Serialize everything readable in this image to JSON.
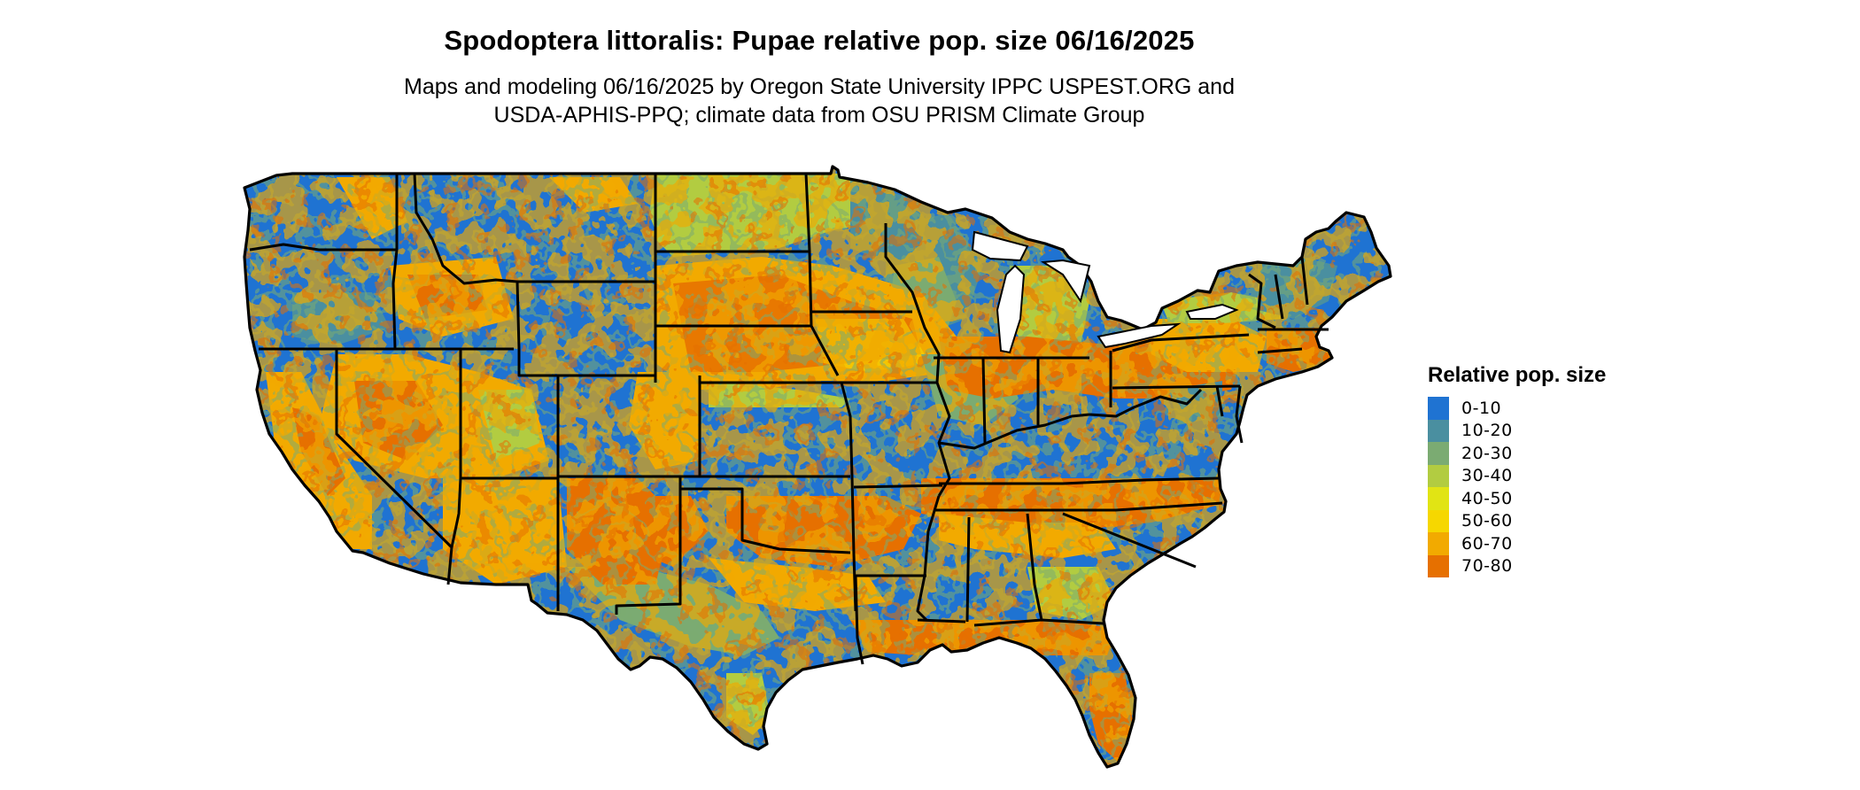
{
  "title": "Spodoptera littoralis: Pupae relative pop. size 06/16/2025",
  "subtitle_line1": "Maps and modeling 06/16/2025 by Oregon State University IPPC USPEST.ORG and",
  "subtitle_line2": "USDA-APHIS-PPQ; climate data from OSU PRISM Climate Group",
  "legend": {
    "title": "Relative pop. size",
    "items": [
      {
        "label": "0-10",
        "color": "#1f73d2"
      },
      {
        "label": "10-20",
        "color": "#4a8fa0"
      },
      {
        "label": "20-30",
        "color": "#7bab72"
      },
      {
        "label": "30-40",
        "color": "#b2cc41"
      },
      {
        "label": "40-50",
        "color": "#e1e414"
      },
      {
        "label": "50-60",
        "color": "#f6d700"
      },
      {
        "label": "60-70",
        "color": "#f2aa00"
      },
      {
        "label": "70-80",
        "color": "#e67000"
      }
    ]
  },
  "map": {
    "region": "Contiguous United States",
    "boundary_color": "#000000"
  }
}
